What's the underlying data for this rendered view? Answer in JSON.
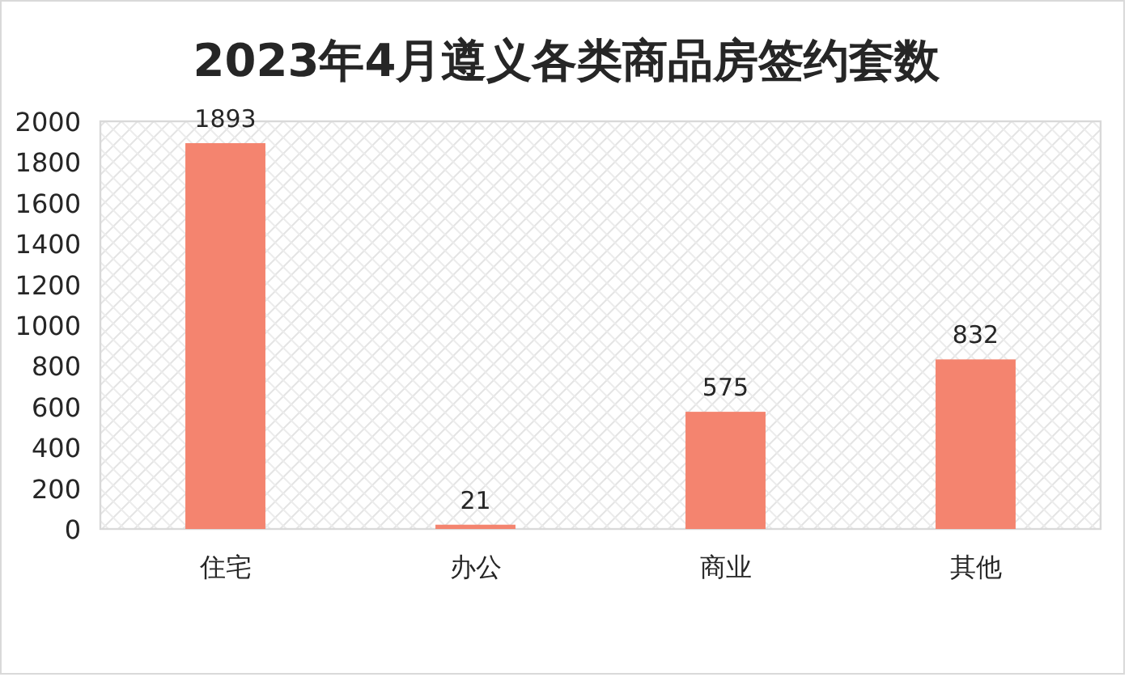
{
  "chart_data": {
    "type": "bar",
    "title": "2023年4月遵义各类商品房签约套数",
    "categories": [
      "住宅",
      "办公",
      "商业",
      "其他"
    ],
    "values": [
      1893,
      21,
      575,
      832
    ],
    "color": "#f4846f",
    "ylim": [
      0,
      2000
    ],
    "yticks": [
      0,
      200,
      400,
      600,
      800,
      1000,
      1200,
      1400,
      1600,
      1800,
      2000
    ],
    "data_labels": true
  }
}
